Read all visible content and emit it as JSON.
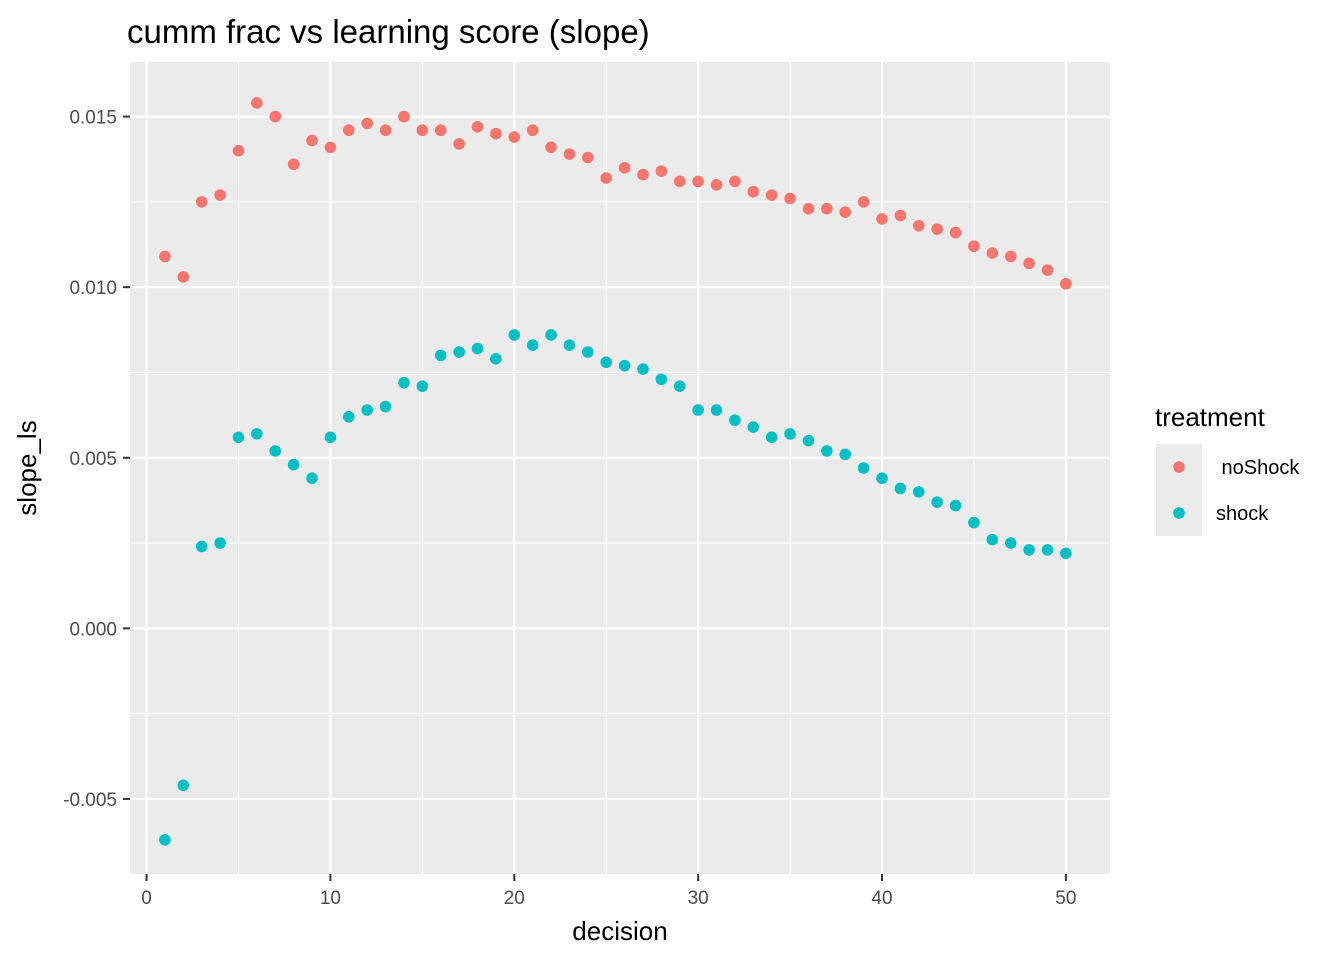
{
  "chart_data": {
    "type": "scatter",
    "title": "cumm frac vs learning score (slope)",
    "xlabel": "decision",
    "ylabel": "slope_ls",
    "xlim": [
      -0.9,
      52.4
    ],
    "ylim": [
      -0.0072,
      0.0166
    ],
    "xticks": [
      0,
      10,
      20,
      30,
      40,
      50
    ],
    "xtick_labels": [
      "0",
      "10",
      "20",
      "30",
      "40",
      "50"
    ],
    "yticks": [
      -0.005,
      0.0,
      0.005,
      0.01,
      0.015
    ],
    "ytick_labels": [
      "-0.005",
      "0.000",
      "0.005",
      "0.010",
      "0.015"
    ],
    "grid": true,
    "legend": {
      "title": "treatment",
      "position": "right"
    },
    "x": [
      1,
      2,
      3,
      4,
      5,
      6,
      7,
      8,
      9,
      10,
      11,
      12,
      13,
      14,
      15,
      16,
      17,
      18,
      19,
      20,
      21,
      22,
      23,
      24,
      25,
      26,
      27,
      28,
      29,
      30,
      31,
      32,
      33,
      34,
      35,
      36,
      37,
      38,
      39,
      40,
      41,
      42,
      43,
      44,
      45,
      46,
      47,
      48,
      49,
      50
    ],
    "series": [
      {
        "name": " noShock",
        "color": "#F8766D",
        "values": [
          0.0109,
          0.0103,
          0.0125,
          0.0127,
          0.014,
          0.0154,
          0.015,
          0.0136,
          0.0143,
          0.0141,
          0.0146,
          0.0148,
          0.0146,
          0.015,
          0.0146,
          0.0146,
          0.0142,
          0.0147,
          0.0145,
          0.0144,
          0.0146,
          0.0141,
          0.0139,
          0.0138,
          0.0132,
          0.0135,
          0.0133,
          0.0134,
          0.0131,
          0.0131,
          0.013,
          0.0131,
          0.0128,
          0.0127,
          0.0126,
          0.0123,
          0.0123,
          0.0122,
          0.0125,
          0.012,
          0.0121,
          0.0118,
          0.0117,
          0.0116,
          0.0112,
          0.011,
          0.0109,
          0.0107,
          0.0105,
          0.0101
        ]
      },
      {
        "name": "shock",
        "color": "#00BFC4",
        "values": [
          -0.0062,
          -0.0046,
          0.0024,
          0.0025,
          0.0056,
          0.0057,
          0.0052,
          0.0048,
          0.0044,
          0.0056,
          0.0062,
          0.0064,
          0.0065,
          0.0072,
          0.0071,
          0.008,
          0.0081,
          0.0082,
          0.0079,
          0.0086,
          0.0083,
          0.0086,
          0.0083,
          0.0081,
          0.0078,
          0.0077,
          0.0076,
          0.0073,
          0.0071,
          0.0064,
          0.0064,
          0.0061,
          0.0059,
          0.0056,
          0.0057,
          0.0055,
          0.0052,
          0.0051,
          0.0047,
          0.0044,
          0.0041,
          0.004,
          0.0037,
          0.0036,
          0.0031,
          0.0026,
          0.0025,
          0.0023,
          0.0023,
          0.0022
        ]
      }
    ],
    "panel_color": "#EBEBEB"
  }
}
